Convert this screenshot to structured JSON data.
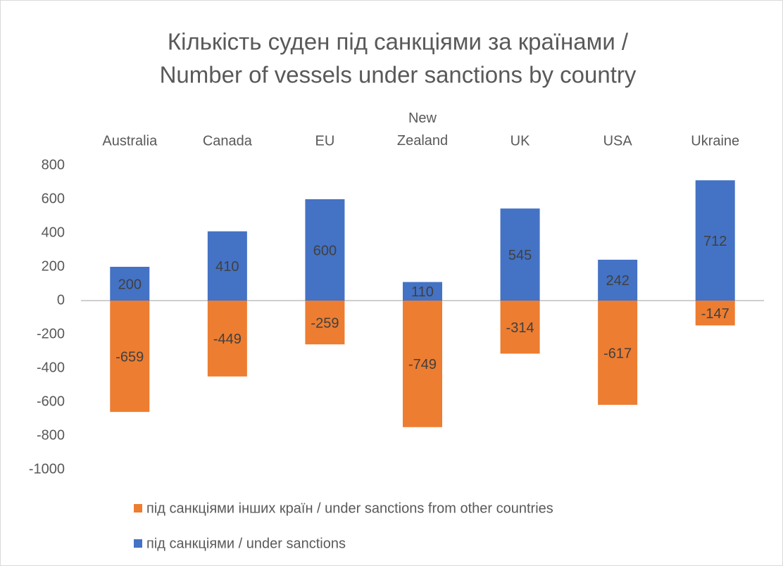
{
  "chart_data": {
    "type": "bar",
    "title": [
      "Кількість суден під санкціями за країнами /",
      "Number of vessels under sanctions by country"
    ],
    "categories": [
      "Australia",
      "Canada",
      "EU",
      "New Zealand",
      "UK",
      "USA",
      "Ukraine"
    ],
    "series": [
      {
        "name": "під санкціями інших країн / under sanctions from other countries",
        "color": "#ed7d31",
        "values": [
          -659,
          -449,
          -259,
          -749,
          -314,
          -617,
          -147
        ]
      },
      {
        "name": "під санкціями / under sanctions",
        "color": "#4472c4",
        "values": [
          200,
          410,
          600,
          110,
          545,
          242,
          712
        ]
      }
    ],
    "ylim": [
      -1000,
      800
    ],
    "yticks": [
      -1000,
      -800,
      -600,
      -400,
      -200,
      0,
      200,
      400,
      600,
      800
    ],
    "grid": false,
    "legend": "bottom"
  }
}
